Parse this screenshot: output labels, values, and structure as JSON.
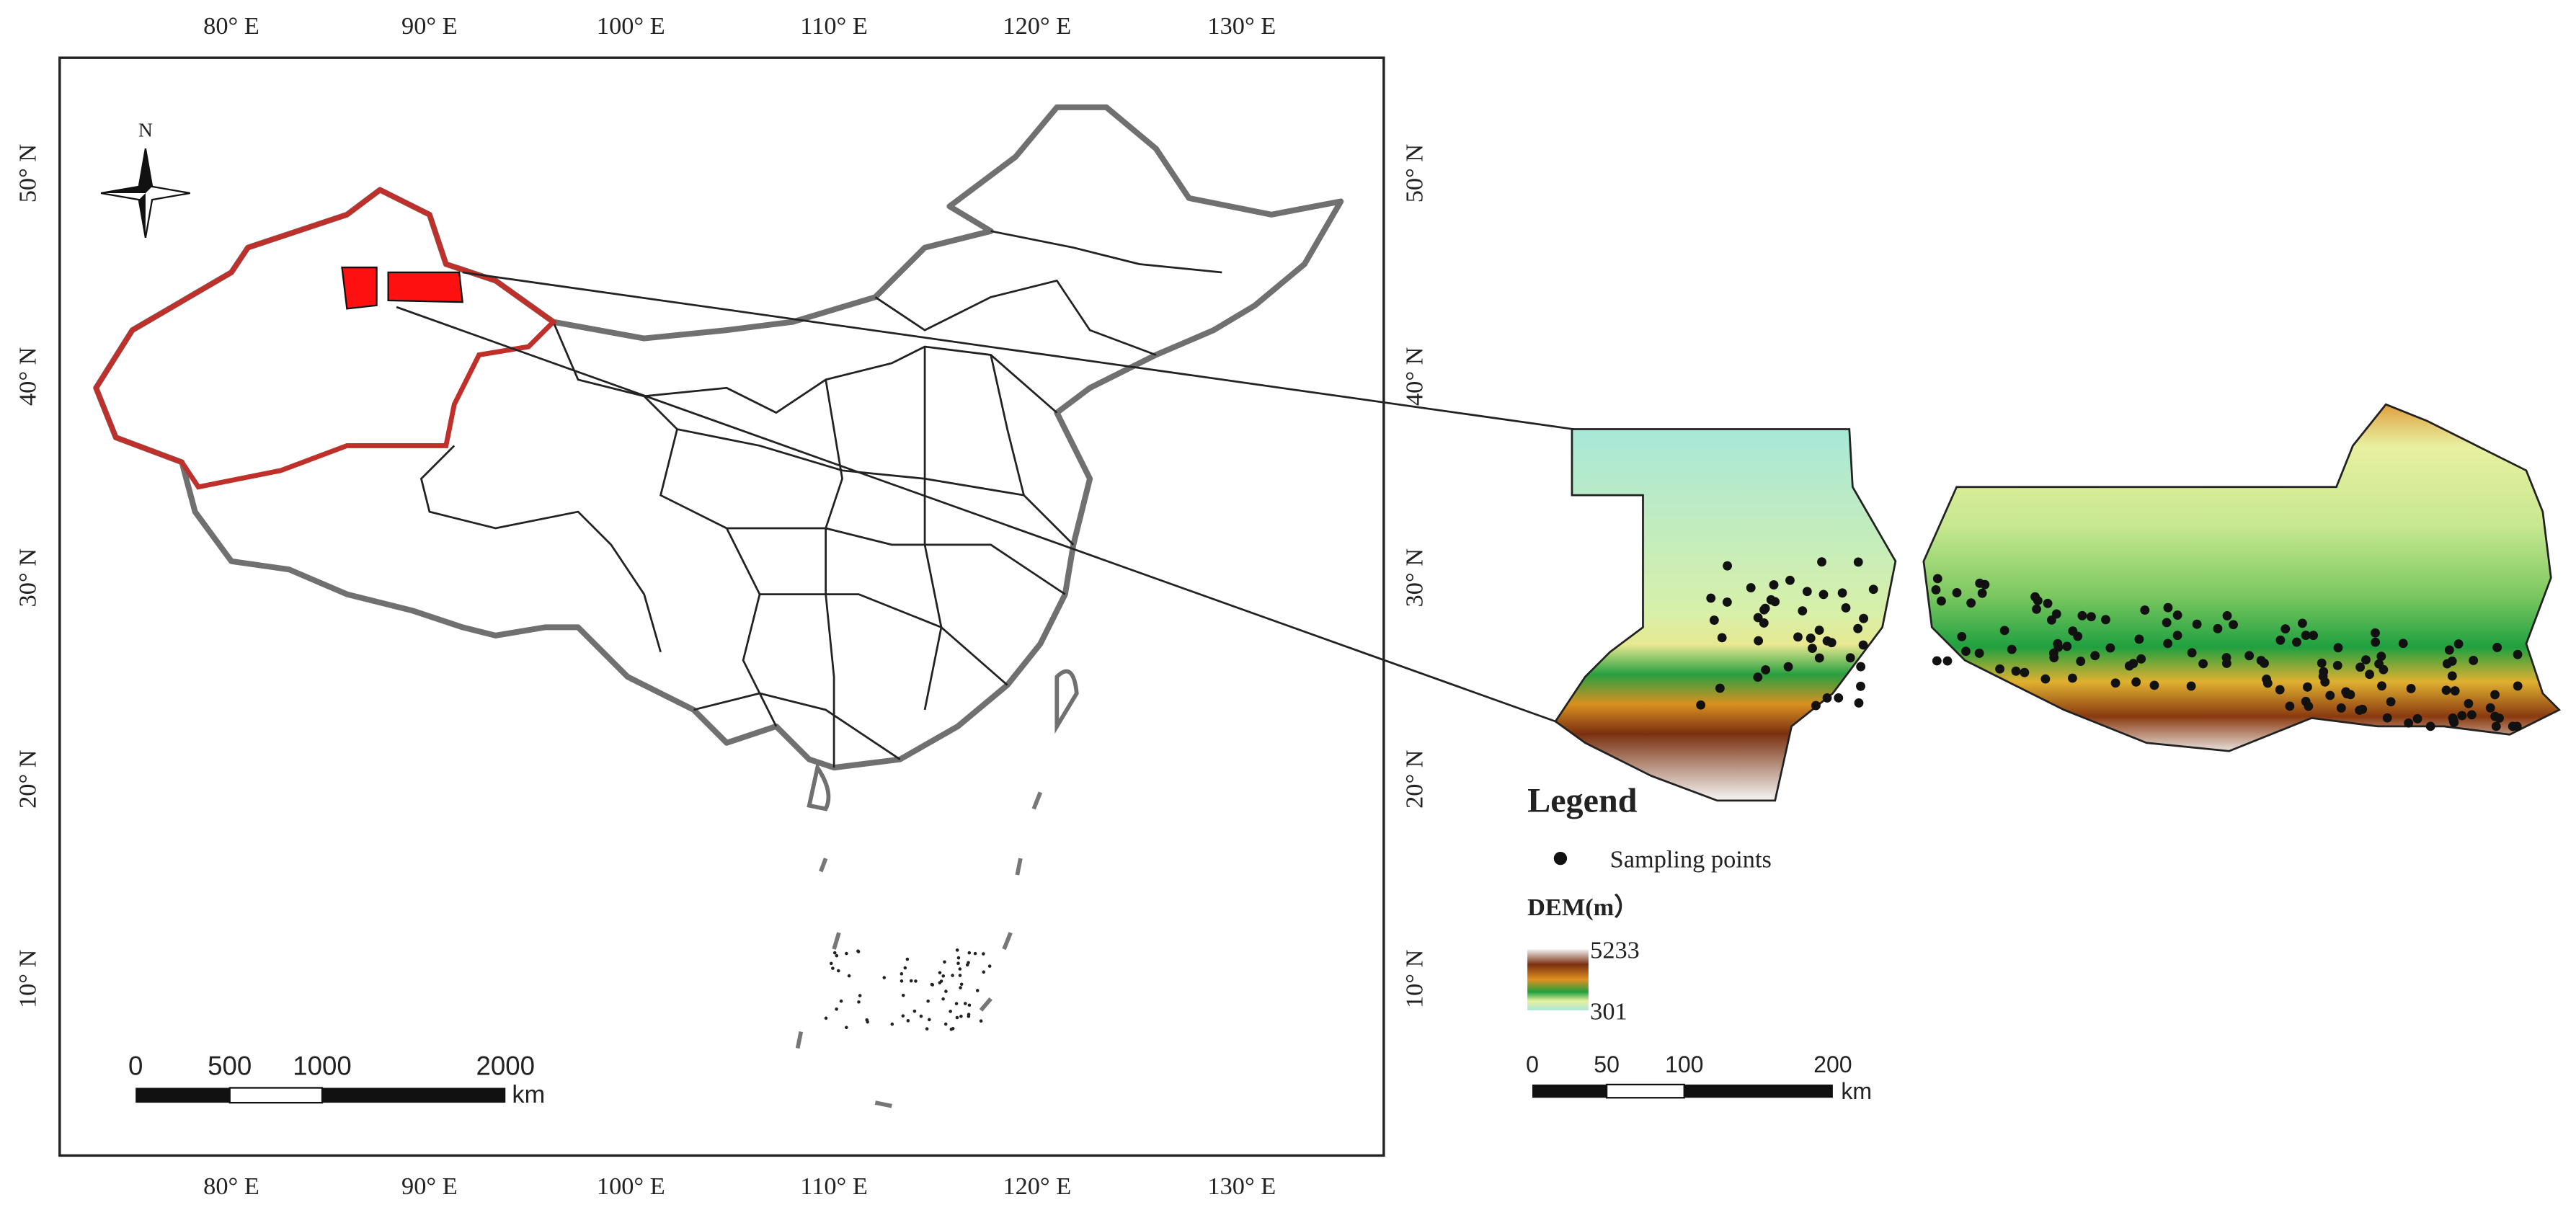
{
  "map": {
    "lon_labels": [
      "80° E",
      "90° E",
      "100° E",
      "110° E",
      "120° E",
      "130° E"
    ],
    "lat_labels": [
      "50° N",
      "40° N",
      "30° N",
      "20° N",
      "10° N"
    ],
    "compass": "N",
    "scale_bar_china": {
      "labels": [
        "0",
        "500",
        "1000",
        "2000"
      ],
      "unit": "km"
    },
    "legend": {
      "title": "Legend",
      "items": [
        "Sampling points"
      ],
      "dem_title": "DEM(m）",
      "dem_max": "5233",
      "dem_min": "301"
    },
    "scale_bar_inset": {
      "labels": [
        "0",
        "50",
        "100",
        "200"
      ],
      "unit": "km"
    }
  }
}
